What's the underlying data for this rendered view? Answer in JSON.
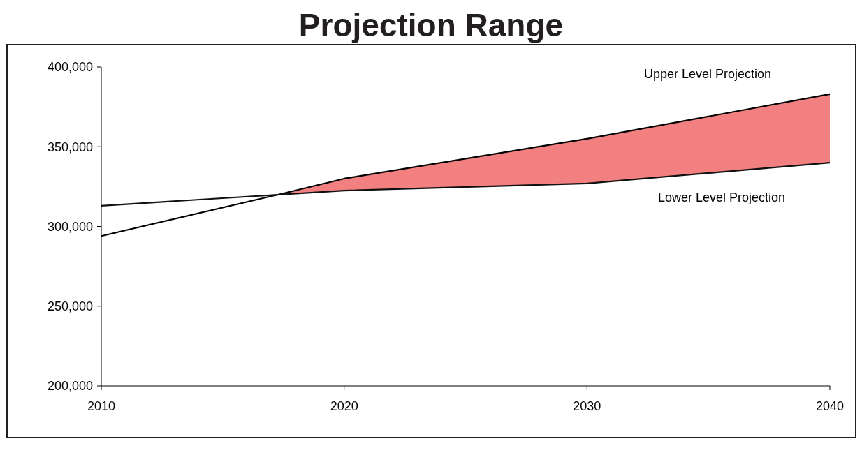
{
  "chart_data": {
    "type": "line",
    "title": "Projection Range",
    "x": [
      2010,
      2020,
      2030,
      2040
    ],
    "xlim": [
      2010,
      2040
    ],
    "xticks": [
      2010,
      2020,
      2030,
      2040
    ],
    "ylim": [
      200000,
      400000
    ],
    "yticks": [
      {
        "value": 200000,
        "label": "200,000"
      },
      {
        "value": 250000,
        "label": "250,000"
      },
      {
        "value": 300000,
        "label": "300,000"
      },
      {
        "value": 350000,
        "label": "350,000"
      },
      {
        "value": 400000,
        "label": "400,000"
      }
    ],
    "grid": false,
    "legend": false,
    "series": [
      {
        "name": "Upper Level Projection",
        "color": "#000000",
        "x": [
          2010,
          2017.3,
          2020,
          2030,
          2040
        ],
        "values": [
          294000,
          320000,
          330000,
          355000,
          383000
        ],
        "lower": [
          null,
          320000,
          322500,
          327000,
          340000
        ],
        "upper": [
          null,
          320000,
          330000,
          355000,
          383000
        ]
      },
      {
        "name": "Lower Level Projection",
        "color": "#111111",
        "values": [
          313000,
          322500,
          327000,
          340000
        ]
      }
    ]
  }
}
